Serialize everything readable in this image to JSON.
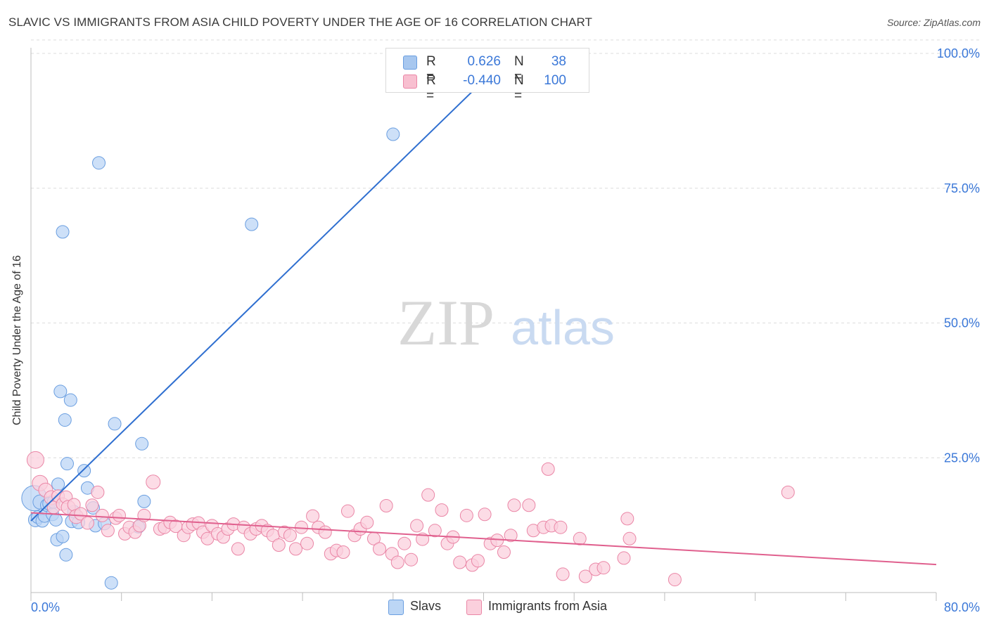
{
  "title": "SLAVIC VS IMMIGRANTS FROM ASIA CHILD POVERTY UNDER THE AGE OF 16 CORRELATION CHART",
  "source": "Source: ZipAtlas.com",
  "watermark": {
    "zip": "ZIP",
    "atlas": "atlas"
  },
  "legend": {
    "rows": [
      {
        "r_label": "R =",
        "r_value": "0.626",
        "n_label": "N =",
        "n_value": "38",
        "color": "#a7c7ef",
        "border": "#6a9ee0"
      },
      {
        "r_label": "R =",
        "r_value": "-0.440",
        "n_label": "N = ",
        "n_value": "100",
        "color": "#f8bfd0",
        "border": "#ea86a6"
      }
    ],
    "value_color": "#3b78d8"
  },
  "bottom_legend": [
    {
      "label": "Slavs",
      "color": "#bcd6f5",
      "border": "#6a9ee0"
    },
    {
      "label": "Immigrants from Asia",
      "color": "#fbd0dd",
      "border": "#ea86a6"
    }
  ],
  "chart_data": {
    "type": "scatter",
    "title": "SLAVIC VS IMMIGRANTS FROM ASIA CHILD POVERTY UNDER THE AGE OF 16 CORRELATION CHART",
    "xlabel": "",
    "ylabel": "Child Poverty Under the Age of 16",
    "xlim": [
      0,
      80
    ],
    "ylim": [
      0,
      105
    ],
    "x_tick_labels": [
      {
        "value": 0,
        "label": "0.0%"
      },
      {
        "value": 80,
        "label": "80.0%"
      }
    ],
    "y_tick_labels": [
      {
        "value": 25,
        "label": "25.0%"
      },
      {
        "value": 50,
        "label": "50.0%"
      },
      {
        "value": 75,
        "label": "75.0%"
      },
      {
        "value": 100,
        "label": "100.0%"
      }
    ],
    "grid": true,
    "series": [
      {
        "name": "Slavs",
        "color": "#6a9ee0",
        "fill": "#bcd6f5",
        "trend": {
          "x0": 0,
          "y0": 13.3,
          "x1": 40.5,
          "y1": 96.0,
          "color": "#2f6fd0"
        },
        "points": [
          [
            0.3,
            17.5,
            18
          ],
          [
            0.4,
            13.5,
            10
          ],
          [
            0.6,
            14.0,
            9
          ],
          [
            0.8,
            16.8,
            10
          ],
          [
            1.0,
            13.3,
            9
          ],
          [
            1.2,
            14.2,
            9
          ],
          [
            1.4,
            16.2,
            9
          ],
          [
            1.6,
            16.5,
            9
          ],
          [
            1.9,
            14.5,
            9
          ],
          [
            2.0,
            16.8,
            9
          ],
          [
            2.2,
            13.5,
            9
          ],
          [
            2.3,
            9.8,
            9
          ],
          [
            2.4,
            20.1,
            9
          ],
          [
            2.6,
            37.3,
            9
          ],
          [
            2.8,
            10.4,
            9
          ],
          [
            2.8,
            66.9,
            9
          ],
          [
            3.0,
            32.0,
            9
          ],
          [
            3.1,
            7.0,
            9
          ],
          [
            3.2,
            23.9,
            9
          ],
          [
            3.5,
            35.7,
            9
          ],
          [
            3.6,
            13.2,
            9
          ],
          [
            3.8,
            15.0,
            9
          ],
          [
            4.2,
            13.0,
            9
          ],
          [
            4.7,
            22.6,
            9
          ],
          [
            5.0,
            19.4,
            9
          ],
          [
            5.5,
            15.7,
            9
          ],
          [
            5.7,
            12.4,
            9
          ],
          [
            6.0,
            79.7,
            9
          ],
          [
            6.5,
            12.8,
            9
          ],
          [
            7.1,
            1.8,
            9
          ],
          [
            7.4,
            31.3,
            9
          ],
          [
            9.5,
            12.2,
            9
          ],
          [
            9.8,
            27.6,
            9
          ],
          [
            10.0,
            16.9,
            9
          ],
          [
            19.5,
            68.3,
            9
          ],
          [
            32.0,
            85.0,
            9
          ]
        ]
      },
      {
        "name": "Immigrants from Asia",
        "color": "#ea86a6",
        "fill": "#fbd0dd",
        "trend": {
          "x0": 0,
          "y0": 14.8,
          "x1": 80,
          "y1": 5.2,
          "color": "#e0608e"
        },
        "points": [
          [
            0.4,
            24.6,
            12
          ],
          [
            0.8,
            20.3,
            11
          ],
          [
            1.3,
            19.0,
            10
          ],
          [
            1.8,
            17.6,
            10
          ],
          [
            2.0,
            15.8,
            9
          ],
          [
            2.4,
            17.9,
            9
          ],
          [
            2.8,
            16.4,
            9
          ],
          [
            3.1,
            17.7,
            9
          ],
          [
            3.3,
            15.8,
            10
          ],
          [
            3.8,
            16.3,
            9
          ],
          [
            4.0,
            14.1,
            10
          ],
          [
            4.4,
            14.6,
            9
          ],
          [
            5.0,
            12.9,
            9
          ],
          [
            5.4,
            16.2,
            9
          ],
          [
            5.9,
            18.6,
            9
          ],
          [
            6.3,
            14.3,
            9
          ],
          [
            6.8,
            11.5,
            9
          ],
          [
            7.5,
            13.8,
            9
          ],
          [
            7.8,
            14.3,
            9
          ],
          [
            8.3,
            10.9,
            9
          ],
          [
            8.7,
            12.1,
            9
          ],
          [
            9.2,
            11.2,
            9
          ],
          [
            9.6,
            12.4,
            9
          ],
          [
            10.0,
            14.3,
            9
          ],
          [
            10.8,
            20.5,
            10
          ],
          [
            11.4,
            11.8,
            9
          ],
          [
            11.8,
            12.1,
            9
          ],
          [
            12.3,
            13.0,
            9
          ],
          [
            12.8,
            12.3,
            9
          ],
          [
            13.5,
            10.6,
            9
          ],
          [
            13.9,
            12.1,
            9
          ],
          [
            14.3,
            12.7,
            9
          ],
          [
            14.8,
            12.9,
            9
          ],
          [
            15.2,
            11.2,
            9
          ],
          [
            15.6,
            10.0,
            9
          ],
          [
            16.0,
            12.4,
            9
          ],
          [
            16.5,
            10.9,
            9
          ],
          [
            17.0,
            10.3,
            9
          ],
          [
            17.4,
            11.8,
            9
          ],
          [
            17.9,
            12.7,
            9
          ],
          [
            18.3,
            8.1,
            9
          ],
          [
            18.8,
            12.1,
            9
          ],
          [
            19.4,
            10.9,
            9
          ],
          [
            19.9,
            11.8,
            9
          ],
          [
            20.4,
            12.4,
            9
          ],
          [
            20.9,
            11.5,
            9
          ],
          [
            21.4,
            10.6,
            9
          ],
          [
            21.9,
            8.8,
            9
          ],
          [
            22.4,
            11.2,
            9
          ],
          [
            22.9,
            10.6,
            9
          ],
          [
            23.4,
            8.1,
            9
          ],
          [
            23.9,
            12.1,
            9
          ],
          [
            24.4,
            9.1,
            9
          ],
          [
            24.9,
            14.2,
            9
          ],
          [
            25.4,
            12.1,
            9
          ],
          [
            26.0,
            11.2,
            9
          ],
          [
            26.5,
            7.2,
            9
          ],
          [
            27.0,
            7.8,
            9
          ],
          [
            27.6,
            7.5,
            9
          ],
          [
            28.0,
            15.1,
            9
          ],
          [
            28.6,
            10.6,
            9
          ],
          [
            29.1,
            11.8,
            9
          ],
          [
            29.7,
            13.0,
            9
          ],
          [
            30.3,
            10.0,
            9
          ],
          [
            30.8,
            8.1,
            9
          ],
          [
            31.4,
            16.1,
            9
          ],
          [
            31.9,
            7.2,
            9
          ],
          [
            32.4,
            5.6,
            9
          ],
          [
            33.0,
            9.1,
            9
          ],
          [
            33.6,
            6.1,
            9
          ],
          [
            34.1,
            12.4,
            9
          ],
          [
            34.6,
            9.9,
            9
          ],
          [
            35.1,
            18.1,
            9
          ],
          [
            35.7,
            11.5,
            9
          ],
          [
            36.3,
            15.3,
            9
          ],
          [
            36.8,
            9.1,
            9
          ],
          [
            37.3,
            10.3,
            9
          ],
          [
            37.9,
            5.6,
            9
          ],
          [
            38.5,
            14.3,
            9
          ],
          [
            39.0,
            5.1,
            9
          ],
          [
            39.5,
            5.9,
            9
          ],
          [
            40.1,
            14.5,
            9
          ],
          [
            40.6,
            9.1,
            9
          ],
          [
            41.2,
            9.7,
            9
          ],
          [
            41.8,
            7.5,
            9
          ],
          [
            42.4,
            10.6,
            9
          ],
          [
            42.7,
            16.2,
            9
          ],
          [
            44.0,
            16.2,
            9
          ],
          [
            44.4,
            11.5,
            9
          ],
          [
            45.3,
            12.1,
            9
          ],
          [
            45.7,
            22.9,
            9
          ],
          [
            46.0,
            12.4,
            9
          ],
          [
            46.8,
            12.1,
            9
          ],
          [
            47.0,
            3.4,
            9
          ],
          [
            48.5,
            10.0,
            9
          ],
          [
            49.0,
            3.0,
            9
          ],
          [
            49.9,
            4.3,
            9
          ],
          [
            50.6,
            4.6,
            9
          ],
          [
            52.4,
            6.4,
            9
          ],
          [
            52.7,
            13.7,
            9
          ],
          [
            52.9,
            10.0,
            9
          ],
          [
            56.9,
            2.4,
            9
          ],
          [
            66.9,
            18.6,
            9
          ]
        ]
      }
    ]
  }
}
